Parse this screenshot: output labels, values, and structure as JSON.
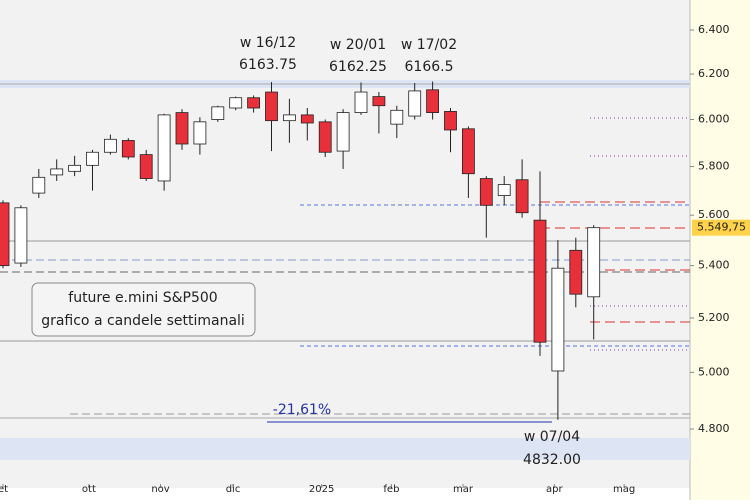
{
  "chart_data": {
    "type": "candlestick",
    "log_scale": true,
    "open": [
      5650,
      5410,
      5690,
      5765,
      5780,
      5805,
      5860,
      5910,
      5850,
      5740,
      6030,
      5895,
      6000,
      6050,
      6095,
      6120,
      5995,
      6020,
      5990,
      5865,
      6030,
      6100,
      5980,
      6015,
      6130,
      6035,
      5960,
      5750,
      5680,
      5745,
      5580,
      5005,
      5460,
      5280
    ],
    "high": [
      5660,
      5640,
      5790,
      5830,
      5845,
      5870,
      5935,
      5920,
      5870,
      6025,
      6045,
      6010,
      6060,
      6100,
      6105,
      6163.75,
      6090,
      6050,
      6000,
      6045,
      6162.25,
      6120,
      6060,
      6160,
      6166.5,
      6050,
      5970,
      5760,
      5760,
      5830,
      5780,
      5500,
      5510,
      5560
    ],
    "low": [
      5390,
      5395,
      5670,
      5740,
      5760,
      5700,
      5850,
      5830,
      5740,
      5700,
      5870,
      5850,
      5990,
      6040,
      6030,
      5865,
      5900,
      5910,
      5840,
      5790,
      6020,
      5940,
      5920,
      6000,
      6000,
      5860,
      5670,
      5510,
      5640,
      5590,
      5060,
      4832,
      5240,
      5120
    ],
    "close": [
      5400,
      5630,
      5755,
      5790,
      5805,
      5860,
      5915,
      5840,
      5750,
      6020,
      5895,
      5990,
      6055,
      6095,
      6050,
      5995,
      6020,
      5985,
      5860,
      6030,
      6120,
      6060,
      6040,
      6125,
      6030,
      5955,
      5770,
      5640,
      5725,
      5610,
      5110,
      5390,
      5290,
      5549.75
    ],
    "up_color": "#ffffff",
    "down_color": "#e8303a",
    "ylim": [
      4600,
      6540
    ],
    "yticks": [
      {
        "value": 4800,
        "label": "4.800"
      },
      {
        "value": 5000,
        "label": "5.000"
      },
      {
        "value": 5200,
        "label": "5.200"
      },
      {
        "value": 5400,
        "label": "5.400"
      },
      {
        "value": 5600,
        "label": "5.600"
      },
      {
        "value": 5800,
        "label": "5.800"
      },
      {
        "value": 6000,
        "label": "6.000"
      },
      {
        "value": 6200,
        "label": "6.200"
      },
      {
        "value": 6400,
        "label": "6.400"
      }
    ],
    "xticks": [
      {
        "value": 0,
        "label": "et"
      },
      {
        "value": 4.8,
        "label": "ott"
      },
      {
        "value": 8.8,
        "label": "nov"
      },
      {
        "value": 12.85,
        "label": "dic"
      },
      {
        "value": 17.8,
        "label": "2025"
      },
      {
        "value": 21.7,
        "label": "feb"
      },
      {
        "value": 25.7,
        "label": "mar"
      },
      {
        "value": 30.8,
        "label": "apr"
      },
      {
        "value": 34.7,
        "label": "mag"
      }
    ],
    "price_label": {
      "value": 5549.75,
      "label": "5.549,75"
    },
    "annotations": [
      {
        "week": "w 16/12",
        "price": "6163.75"
      },
      {
        "week": "w 20/01",
        "price": "6162.25"
      },
      {
        "week": "w 17/02",
        "price": "6166.5"
      },
      {
        "week": "w 07/04",
        "price": "4832.00"
      }
    ],
    "drawdown": "-21,61%",
    "legend_lines": [
      "future e.mini S&P500",
      "grafico a candele settimanali"
    ]
  }
}
